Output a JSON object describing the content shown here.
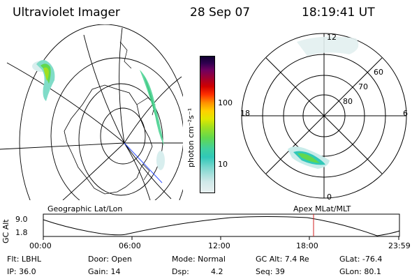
{
  "header": {
    "instrument": "Ultraviolet Imager",
    "date": "28 Sep 07",
    "time": "18:19:41 UT"
  },
  "colorbar": {
    "unit_label": "photon cm⁻²s⁻¹",
    "ticks": [
      "100",
      "10"
    ],
    "scale": "log",
    "colors": [
      "#e8f0f0",
      "#cfe8e8",
      "#80d8d0",
      "#30c8b8",
      "#40d0a0",
      "#60d850",
      "#a0e020",
      "#e0e800",
      "#ffd000",
      "#ff9000",
      "#ff3000",
      "#d00000",
      "#a00030",
      "#700060",
      "#300050",
      "#100030"
    ]
  },
  "polar_plot": {
    "mlt_labels": {
      "top": "12",
      "left": "18",
      "right": "6",
      "bottom": "0"
    },
    "lat_labels": [
      "60",
      "70",
      "80"
    ]
  },
  "map_labels": {
    "left": "Geographic Lat/Lon",
    "right": "Apex  MLat/MLT"
  },
  "altitude_plot": {
    "ylabel": "GC Alt",
    "yticks": [
      "9.0",
      "1.8"
    ],
    "xticks": [
      "00:00",
      "06:00",
      "12:00",
      "18:00",
      "23:59"
    ],
    "current_time_marker_hours": 18.33,
    "marker_color": "#d02020"
  },
  "info": {
    "flt": "Flt: LBHL",
    "door": "Door: Open",
    "mode": "Mode: Normal",
    "gc_alt": "GC Alt: 7.4 Re",
    "glat": "GLat: -76.4",
    "ip": "IP: 36.0",
    "gain": "Gain: 14",
    "dsp_label": "Dsp:",
    "dsp_value": "4.2",
    "seq": "Seq: 39",
    "glon": "GLon:  80.1"
  }
}
